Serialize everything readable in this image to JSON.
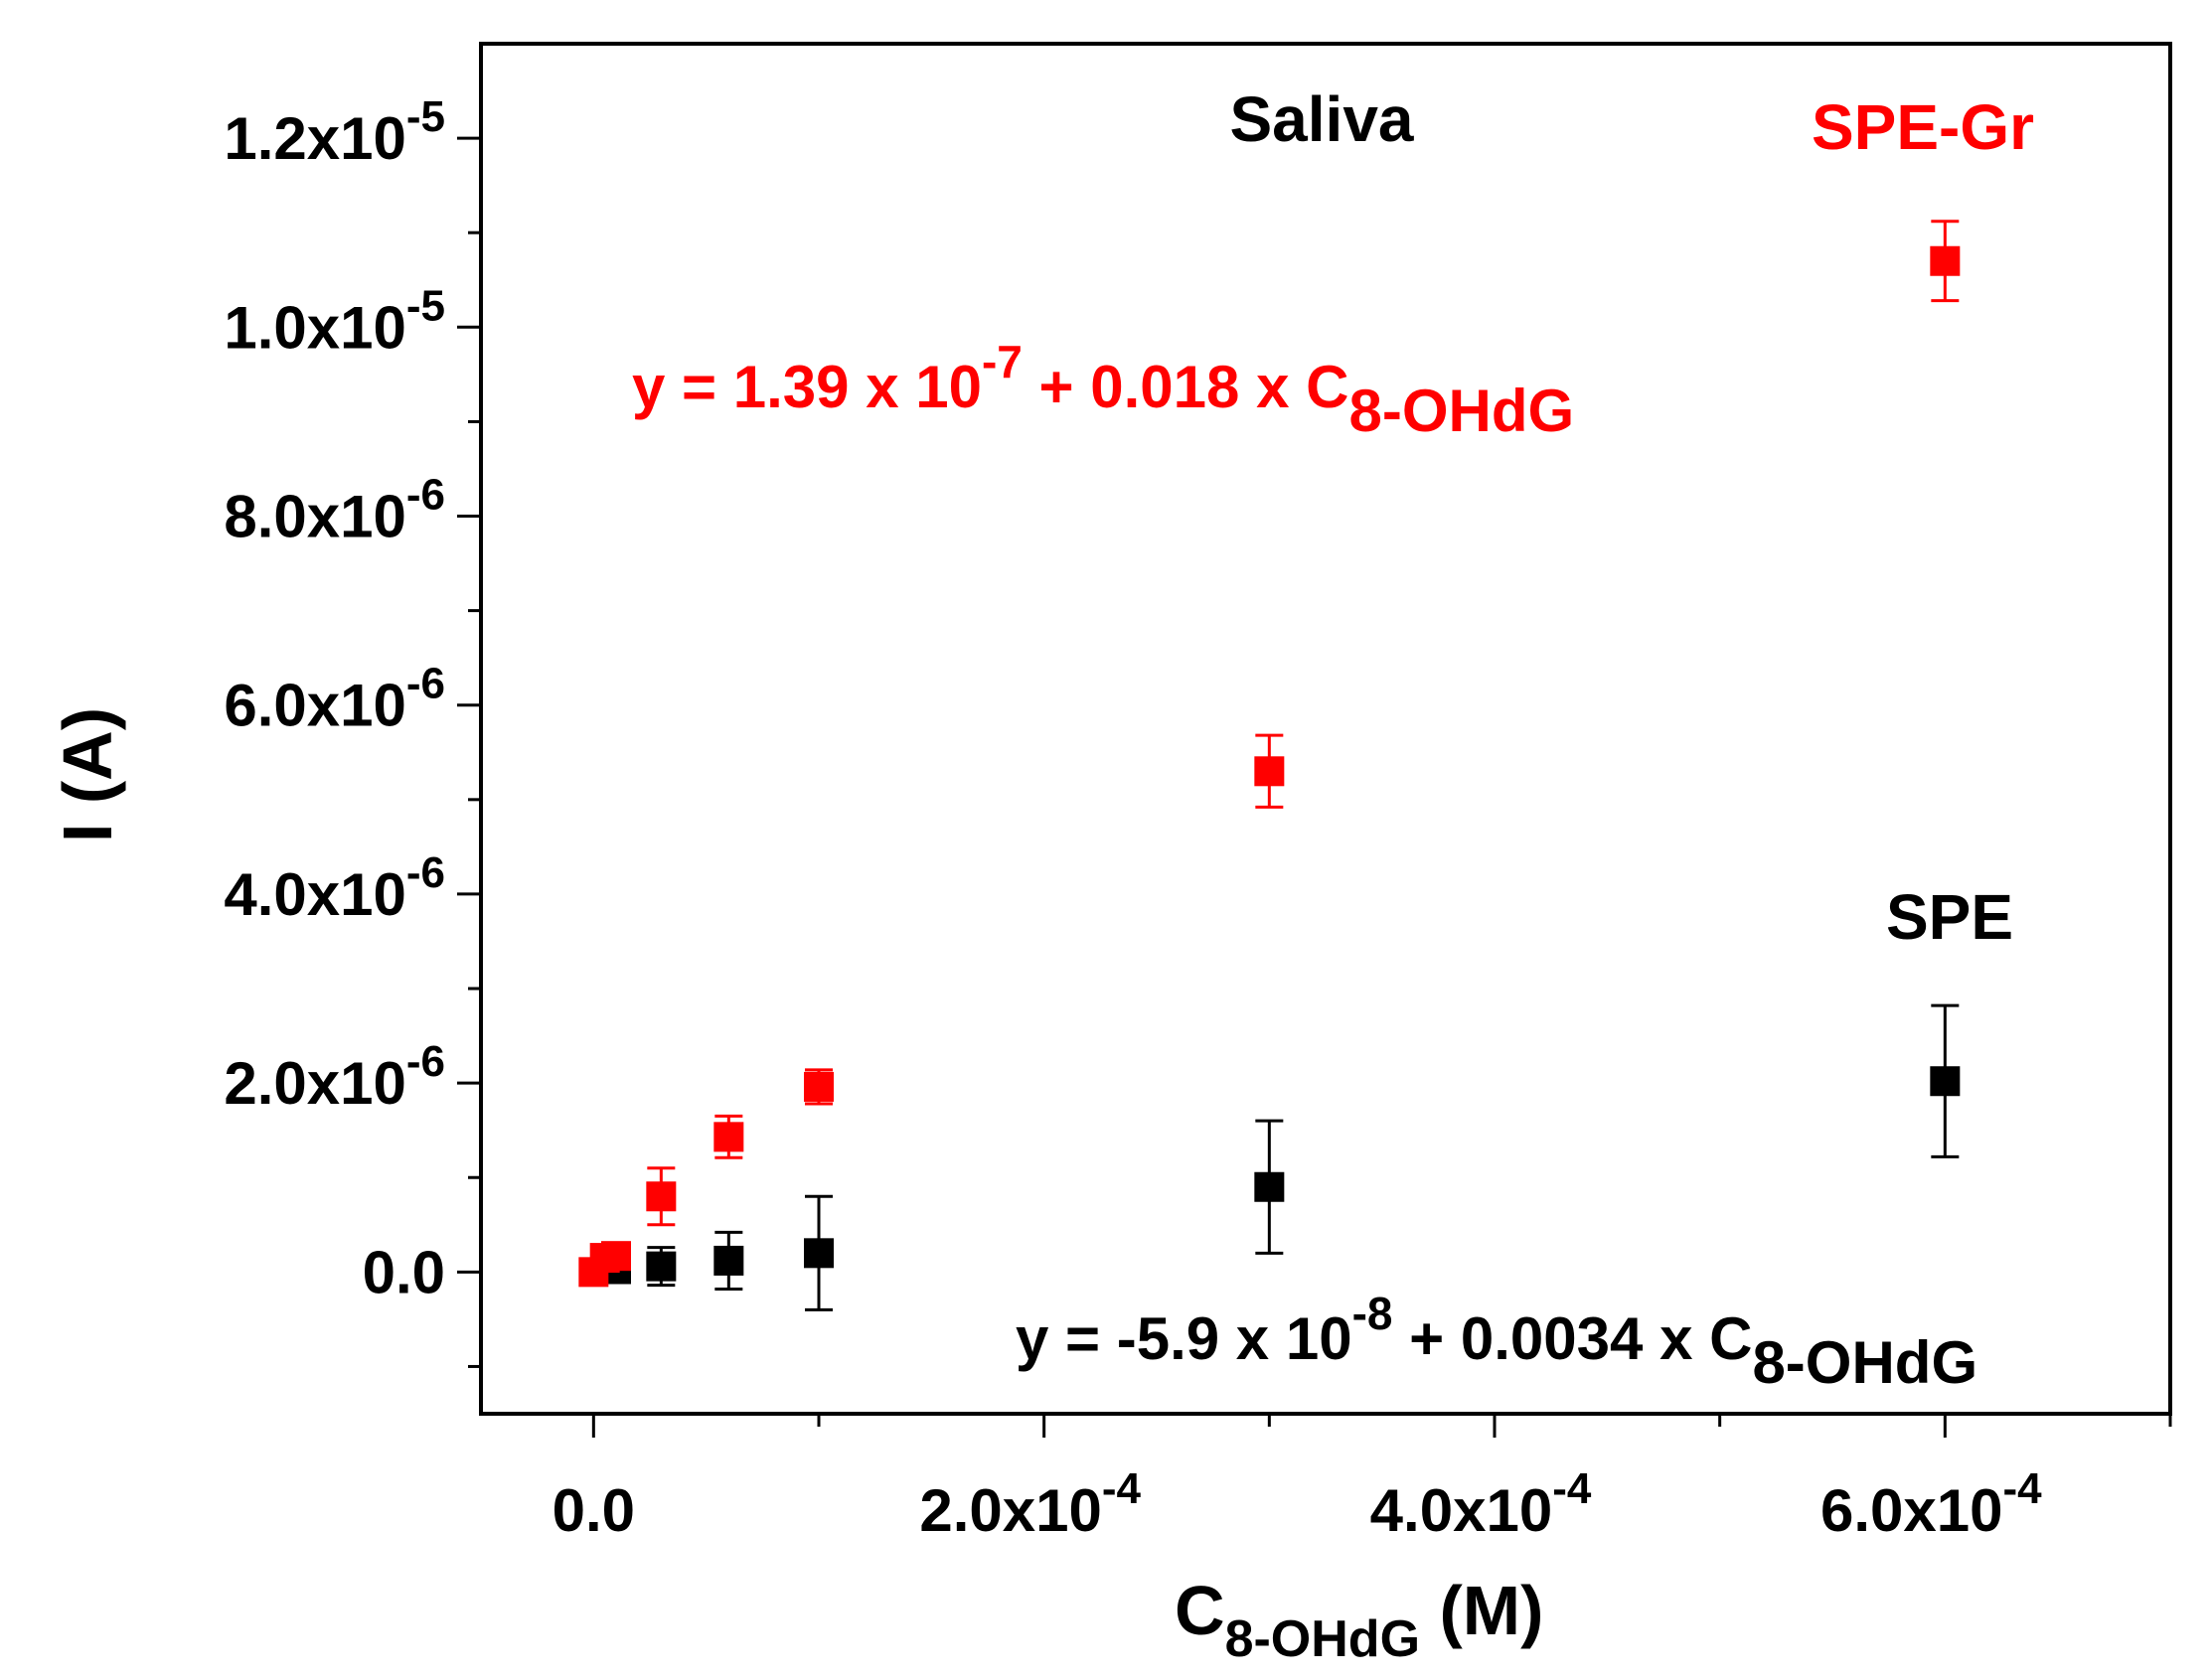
{
  "chart_data": {
    "type": "scatter",
    "title": "Saliva",
    "xlabel": {
      "main": "C",
      "sub": "8-OHdG",
      "suffix": " (M)"
    },
    "ylabel": "I (A)",
    "xlim": [
      -5e-05,
      0.0007
    ],
    "ylim": [
      -1.5e-06,
      1.3e-05
    ],
    "xticks": [
      {
        "value": 0,
        "mantissa": "0.0",
        "exp": ""
      },
      {
        "value": 0.0002,
        "mantissa": "2.0x10",
        "exp": "-4"
      },
      {
        "value": 0.0004,
        "mantissa": "4.0x10",
        "exp": "-4"
      },
      {
        "value": 0.0006,
        "mantissa": "6.0x10",
        "exp": "-4"
      }
    ],
    "xminor": [
      0.0001,
      0.0003,
      0.0005,
      0.0007
    ],
    "yticks": [
      {
        "value": 0,
        "mantissa": "0.0",
        "exp": ""
      },
      {
        "value": 2e-06,
        "mantissa": "2.0x10",
        "exp": "-6"
      },
      {
        "value": 4e-06,
        "mantissa": "4.0x10",
        "exp": "-6"
      },
      {
        "value": 6e-06,
        "mantissa": "6.0x10",
        "exp": "-6"
      },
      {
        "value": 8e-06,
        "mantissa": "8.0x10",
        "exp": "-6"
      },
      {
        "value": 1e-05,
        "mantissa": "1.0x10",
        "exp": "-5"
      },
      {
        "value": 1.2e-05,
        "mantissa": "1.2x10",
        "exp": "-5"
      }
    ],
    "yminor": [
      -1e-06,
      1e-06,
      3e-06,
      5e-06,
      7e-06,
      9e-06,
      1.1e-05
    ],
    "series": [
      {
        "name": "SPE-Gr",
        "color": "#ff0000",
        "label": "SPE-Gr",
        "points": [
          {
            "x": 0,
            "y": 0,
            "err": 5e-08
          },
          {
            "x": 5e-06,
            "y": 1.5e-07,
            "err": 5e-08
          },
          {
            "x": 1e-05,
            "y": 1.7e-07,
            "err": 5e-08
          },
          {
            "x": 3e-05,
            "y": 8e-07,
            "err": 3e-07
          },
          {
            "x": 6e-05,
            "y": 1.43e-06,
            "err": 2.2e-07
          },
          {
            "x": 0.0001,
            "y": 1.96e-06,
            "err": 1.8e-07
          },
          {
            "x": 0.0003,
            "y": 5.3e-06,
            "err": 3.8e-07
          },
          {
            "x": 0.0006,
            "y": 1.07e-05,
            "err": 4.2e-07
          }
        ],
        "equation": {
          "prefix": "y = 1.39 x 10",
          "exp": "-7",
          "middle": " + 0.018 x C",
          "sub": "8-OHdG"
        }
      },
      {
        "name": "SPE",
        "color": "#000000",
        "label": "SPE",
        "points": [
          {
            "x": 1e-05,
            "y": 3e-08,
            "err": 1e-07
          },
          {
            "x": 3e-05,
            "y": 6e-08,
            "err": 2e-07
          },
          {
            "x": 6e-05,
            "y": 1.2e-07,
            "err": 3e-07
          },
          {
            "x": 0.0001,
            "y": 2e-07,
            "err": 6e-07
          },
          {
            "x": 0.0003,
            "y": 9e-07,
            "err": 7e-07
          },
          {
            "x": 0.0006,
            "y": 2.02e-06,
            "err": 8e-07
          }
        ],
        "equation": {
          "prefix": "y = -5.9 x 10",
          "exp": "-8",
          "middle": " + 0.0034 x C",
          "sub": "8-OHdG"
        }
      }
    ]
  }
}
